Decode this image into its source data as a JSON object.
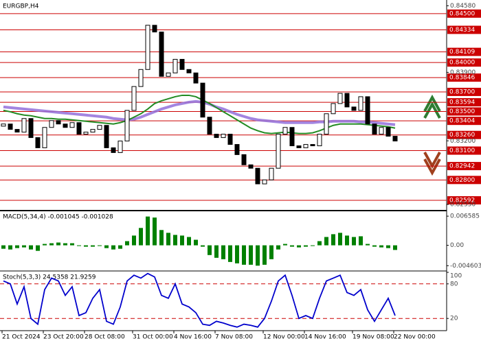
{
  "chart_data": [
    {
      "type": "candlestick",
      "title": "EURGBP,H4",
      "categories": [
        "21 Oct 2024",
        null,
        null,
        null,
        null,
        null,
        "23 Oct 20:00",
        null,
        null,
        null,
        null,
        null,
        "28 Oct 08:00",
        null,
        null,
        null,
        null,
        null,
        null,
        "31 Oct 00:00",
        null,
        null,
        null,
        null,
        null,
        "4 Nov 16:00",
        null,
        null,
        null,
        null,
        null,
        "7 Nov 08:00",
        null,
        null,
        null,
        null,
        null,
        null,
        "12 Nov 00:00",
        null,
        null,
        null,
        null,
        null,
        "14 Nov 16:00",
        null,
        null,
        null,
        null,
        null,
        null,
        "19 Nov 08:00",
        null,
        null,
        null,
        null,
        null,
        "22 Nov 00:00"
      ],
      "open": [
        0.8335,
        0.83372,
        0.83317,
        0.83289,
        0.83428,
        0.83233,
        0.83129,
        0.83337,
        0.83407,
        0.83372,
        0.83337,
        0.83386,
        0.83268,
        0.83289,
        0.83317,
        0.83358,
        0.83129,
        0.8308,
        0.83198,
        0.83511,
        0.83755,
        0.83929,
        0.84381,
        0.84312,
        0.83859,
        0.83894,
        0.84033,
        0.83929,
        0.83894,
        0.8379,
        0.83442,
        0.83268,
        0.83233,
        0.83268,
        0.83163,
        0.83059,
        0.82955,
        0.8292,
        0.8276,
        0.82801,
        0.8292,
        0.83268,
        0.83337,
        0.83149,
        0.83129,
        0.83163,
        0.83149,
        0.83268,
        0.83477,
        0.83581,
        0.83685,
        0.83546,
        0.83511,
        0.83651,
        0.83372,
        0.83268,
        0.83337,
        0.83247
      ],
      "close": [
        0.83372,
        0.83317,
        0.83289,
        0.83428,
        0.83233,
        0.83129,
        0.83337,
        0.83407,
        0.83372,
        0.83337,
        0.83386,
        0.83268,
        0.83289,
        0.83317,
        0.83358,
        0.83129,
        0.8308,
        0.83198,
        0.83511,
        0.83755,
        0.83929,
        0.84381,
        0.84312,
        0.83859,
        0.83894,
        0.84033,
        0.83929,
        0.83894,
        0.8379,
        0.83442,
        0.83268,
        0.83233,
        0.83268,
        0.83163,
        0.83059,
        0.82955,
        0.8292,
        0.8276,
        0.82801,
        0.8292,
        0.83268,
        0.83337,
        0.83149,
        0.83129,
        0.83163,
        0.83149,
        0.83268,
        0.83477,
        0.83581,
        0.83685,
        0.83546,
        0.83511,
        0.83651,
        0.83372,
        0.83268,
        0.83337,
        0.83247,
        0.83198
      ],
      "series": [
        {
          "color": "#9370db",
          "values": [
            0.83546,
            0.83539,
            0.83532,
            0.83525,
            0.83518,
            0.83511,
            0.83504,
            0.83497,
            0.8349,
            0.83483,
            0.83477,
            0.8347,
            0.83463,
            0.83456,
            0.83449,
            0.83442,
            0.83428,
            0.83421,
            0.83414,
            0.83421,
            0.83442,
            0.8347,
            0.83497,
            0.83525,
            0.83546,
            0.83567,
            0.83581,
            0.83595,
            0.83602,
            0.83595,
            0.83574,
            0.83546,
            0.83525,
            0.83497,
            0.8347,
            0.83449,
            0.83428,
            0.83414,
            0.83407,
            0.834,
            0.83393,
            0.83386,
            0.83386,
            0.83386,
            0.83386,
            0.83386,
            0.83393,
            0.83393,
            0.834,
            0.834,
            0.834,
            0.834,
            0.83393,
            0.83393,
            0.83386,
            0.83379,
            0.83372,
            0.83365
          ]
        },
        {
          "color": "#228b22",
          "values": [
            0.83511,
            0.83497,
            0.83477,
            0.83463,
            0.83456,
            0.83442,
            0.83428,
            0.83428,
            0.83421,
            0.83421,
            0.83414,
            0.83407,
            0.834,
            0.83393,
            0.83386,
            0.83379,
            0.83372,
            0.83386,
            0.83407,
            0.83442,
            0.83477,
            0.83525,
            0.83581,
            0.83609,
            0.8363,
            0.83651,
            0.83665,
            0.83665,
            0.83651,
            0.83616,
            0.83581,
            0.83539,
            0.83497,
            0.83456,
            0.83414,
            0.83372,
            0.8333,
            0.83303,
            0.83282,
            0.83275,
            0.83282,
            0.83289,
            0.83282,
            0.83275,
            0.83275,
            0.83282,
            0.83303,
            0.8333,
            0.83358,
            0.83372,
            0.83372,
            0.83372,
            0.83372,
            0.83365,
            0.83358,
            0.83351,
            0.83344,
            0.8333
          ]
        }
      ],
      "ylim": [
        0.82501,
        0.84625
      ],
      "yticks": [
        {
          "value": 0.8458,
          "label": "0.84580"
        },
        {
          "value": 0.839,
          "label": "0.83900"
        },
        {
          "value": 0.832,
          "label": "0.83200"
        },
        {
          "value": 0.8255,
          "label": "0.82550"
        }
      ],
      "levels": [
        {
          "value": 0.845,
          "label": "0.84500"
        },
        {
          "value": 0.84334,
          "label": "0.84334"
        },
        {
          "value": 0.84109,
          "label": "0.84109"
        },
        {
          "value": 0.84,
          "label": "0.84000"
        },
        {
          "value": 0.83846,
          "label": "0.83846"
        },
        {
          "value": 0.837,
          "label": "0.83700"
        },
        {
          "value": 0.83594,
          "label": "0.83594"
        },
        {
          "value": 0.835,
          "label": "0.83500"
        },
        {
          "value": 0.83404,
          "label": "0.83404"
        },
        {
          "value": 0.8326,
          "label": "0.83260"
        },
        {
          "value": 0.831,
          "label": "0.83100"
        },
        {
          "value": 0.82942,
          "label": "0.82942"
        },
        {
          "value": 0.828,
          "label": "0.82800"
        },
        {
          "value": 0.82592,
          "label": "0.82592"
        }
      ],
      "level_color": "#cc0000"
    },
    {
      "type": "bar",
      "title": "MACD(5,34,4) -0.001045 -0.001028",
      "color": "#008000",
      "values": [
        -0.00078,
        -0.00094,
        -0.00063,
        -0.00047,
        -0.00094,
        -0.00125,
        0.00031,
        0.00047,
        0.00063,
        0.00047,
        0.00047,
        -0.00016,
        -0.00031,
        -0.00031,
        -0.00016,
        -0.00063,
        -0.00094,
        -0.00078,
        0.00094,
        0.0022,
        0.00392,
        0.0065,
        0.00627,
        0.00345,
        0.00282,
        0.00235,
        0.0022,
        0.00188,
        0.00125,
        -0.00031,
        -0.0022,
        -0.00282,
        -0.00314,
        -0.00376,
        -0.00408,
        -0.00439,
        -0.00439,
        -0.0046,
        -0.00439,
        -0.00314,
        -0.00094,
        0.00031,
        -0.00031,
        -0.00047,
        -0.00031,
        -0.00016,
        0.00094,
        0.00188,
        0.00251,
        0.00282,
        0.0022,
        0.00188,
        0.00204,
        0.00031,
        -0.00031,
        -0.00047,
        -0.00063,
        -0.00105
      ],
      "ylim": [
        -0.00564,
        0.00753
      ],
      "yticks": [
        0.006585,
        {
          "value": 0,
          "label": "0.00"
        },
        -0.004603
      ]
    },
    {
      "type": "line",
      "title": "Stoch(5,3,3) 24.5358 21.9259",
      "color": "#0000cc",
      "values": [
        85,
        80,
        45,
        75,
        20,
        10,
        70,
        90,
        85,
        60,
        75,
        25,
        30,
        55,
        70,
        15,
        10,
        40,
        85,
        95,
        90,
        98,
        92,
        60,
        55,
        80,
        45,
        40,
        30,
        10,
        8,
        15,
        12,
        8,
        5,
        10,
        8,
        5,
        20,
        50,
        85,
        95,
        60,
        20,
        25,
        20,
        55,
        85,
        90,
        95,
        65,
        60,
        70,
        35,
        15,
        35,
        55,
        25
      ],
      "ylim": [
        0,
        100
      ],
      "yticks": [
        100,
        80,
        20
      ],
      "levels": [
        80,
        20
      ],
      "level_color": "#cc0000"
    }
  ]
}
